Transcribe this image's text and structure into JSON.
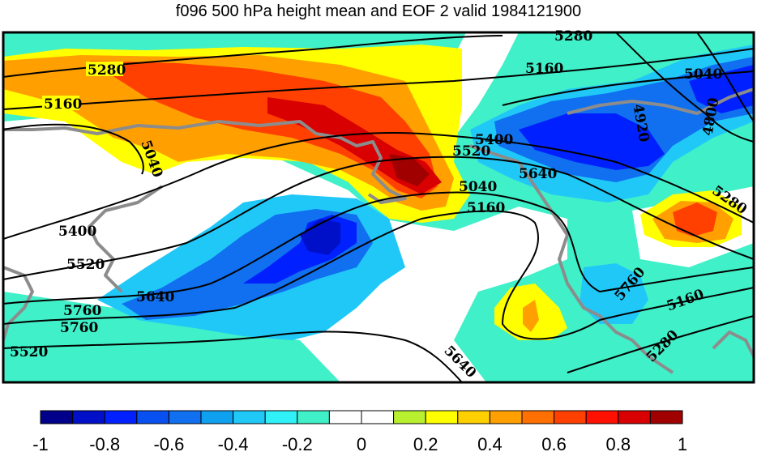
{
  "title": "f096 500 hPa height mean and EOF 2 valid 1984121900",
  "contour_labels": [
    "5280",
    "5160",
    "5040",
    "5040",
    "4920",
    "4800",
    "5160",
    "5280",
    "5400",
    "5520",
    "5640",
    "5040",
    "5160",
    "5280",
    "5400",
    "5520",
    "5640",
    "5760",
    "5760",
    "5520",
    "5640",
    "5760",
    "5160",
    "5280"
  ],
  "colorbar": {
    "tick_labels": [
      "-1",
      "-0.8",
      "-0.6",
      "-0.4",
      "-0.2",
      "0",
      "0.2",
      "0.4",
      "0.6",
      "0.8",
      "1"
    ],
    "colors": [
      "#00008b",
      "#0010c8",
      "#0020ff",
      "#0850f0",
      "#1070f0",
      "#10a0f0",
      "#20c8f8",
      "#30f0f8",
      "#40f0c8",
      "#ffffff",
      "#ffffff",
      "#b8f030",
      "#ffff00",
      "#ffd000",
      "#ffa000",
      "#ff7000",
      "#ff4000",
      "#ff1000",
      "#d80000",
      "#a00000"
    ]
  },
  "colors": {
    "coastline": "#8c8c8c",
    "contour": "#000000",
    "frame": "#000000"
  }
}
